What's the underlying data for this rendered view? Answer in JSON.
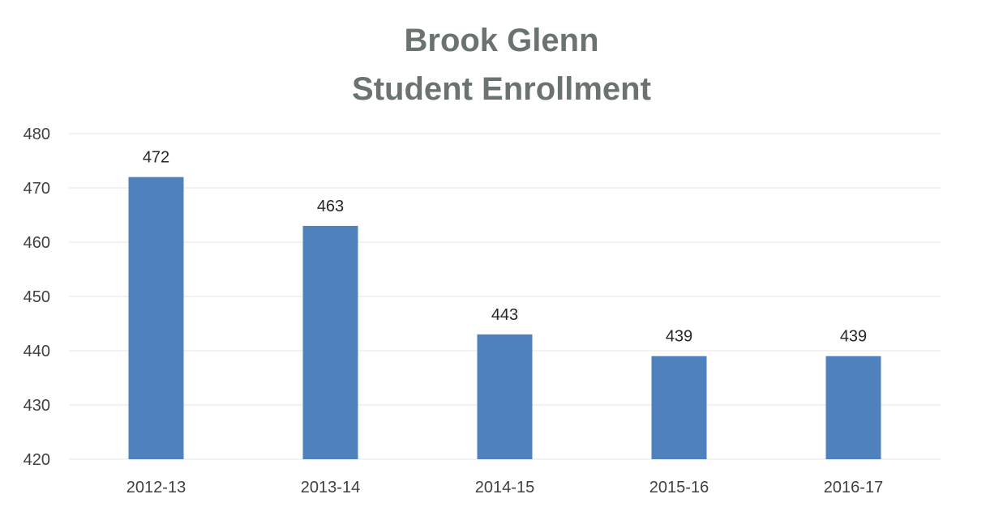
{
  "chart_data": {
    "type": "bar",
    "title_lines": [
      "Brook Glenn",
      "Student Enrollment"
    ],
    "categories": [
      "2012-13",
      "2013-14",
      "2014-15",
      "2015-16",
      "2016-17"
    ],
    "values": [
      472,
      463,
      443,
      439,
      439
    ],
    "data_labels": [
      "472",
      "463",
      "443",
      "439",
      "439"
    ],
    "y_ticks": [
      "420",
      "430",
      "440",
      "450",
      "460",
      "470",
      "480"
    ],
    "ylim": [
      420,
      480
    ],
    "grid": true,
    "legend": "none",
    "bar_color": "#4f81bd",
    "grid_color": "#e6e6e6"
  }
}
